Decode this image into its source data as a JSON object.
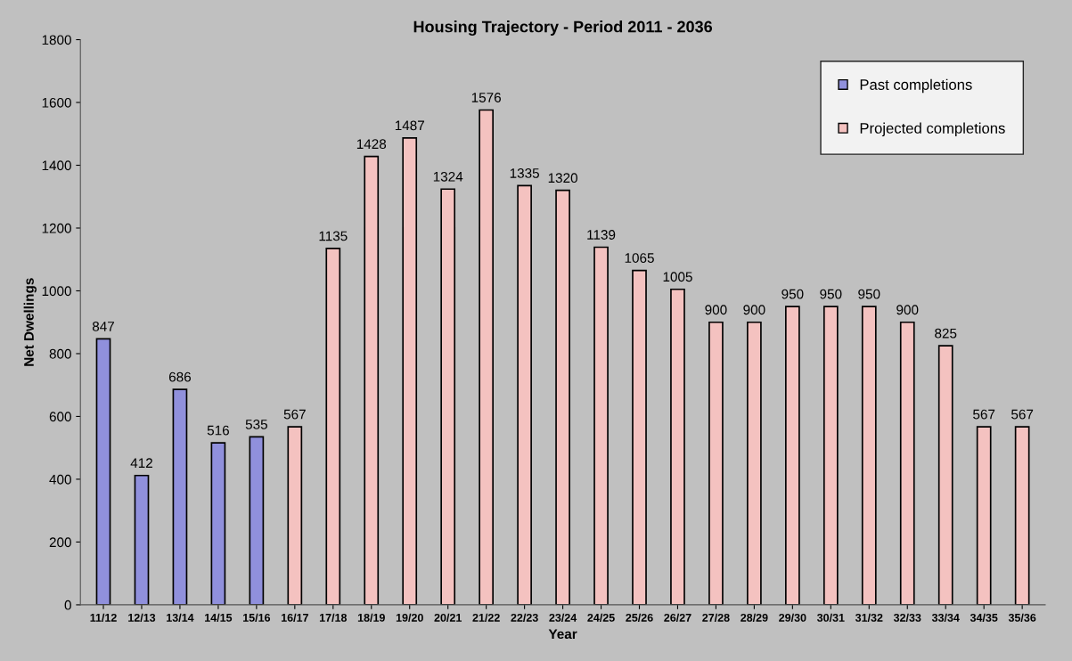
{
  "chart_data": {
    "type": "bar",
    "title": "Housing Trajectory - Period 2011 - 2036",
    "xlabel": "Year",
    "ylabel": "Net Dwellings",
    "categories": [
      "11/12",
      "12/13",
      "13/14",
      "14/15",
      "15/16",
      "16/17",
      "17/18",
      "18/19",
      "19/20",
      "20/21",
      "21/22",
      "22/23",
      "23/24",
      "24/25",
      "25/26",
      "26/27",
      "27/28",
      "28/29",
      "29/30",
      "30/31",
      "31/32",
      "32/33",
      "33/34",
      "34/35",
      "35/36"
    ],
    "series": [
      {
        "name": "Past completions",
        "color": "#9090dc",
        "values": [
          847,
          412,
          686,
          516,
          535,
          null,
          null,
          null,
          null,
          null,
          null,
          null,
          null,
          null,
          null,
          null,
          null,
          null,
          null,
          null,
          null,
          null,
          null,
          null,
          null
        ]
      },
      {
        "name": "Projected completions",
        "color": "#f4c2c0",
        "values": [
          null,
          null,
          null,
          null,
          null,
          567,
          1135,
          1428,
          1487,
          1324,
          1576,
          1335,
          1320,
          1139,
          1065,
          1005,
          900,
          900,
          950,
          950,
          950,
          900,
          825,
          567,
          567
        ]
      }
    ],
    "ylim": [
      0,
      1800
    ],
    "yticks": [
      0,
      200,
      400,
      600,
      800,
      1000,
      1200,
      1400,
      1600,
      1800
    ],
    "data_labels": true,
    "legend": "top right",
    "grid": false
  }
}
